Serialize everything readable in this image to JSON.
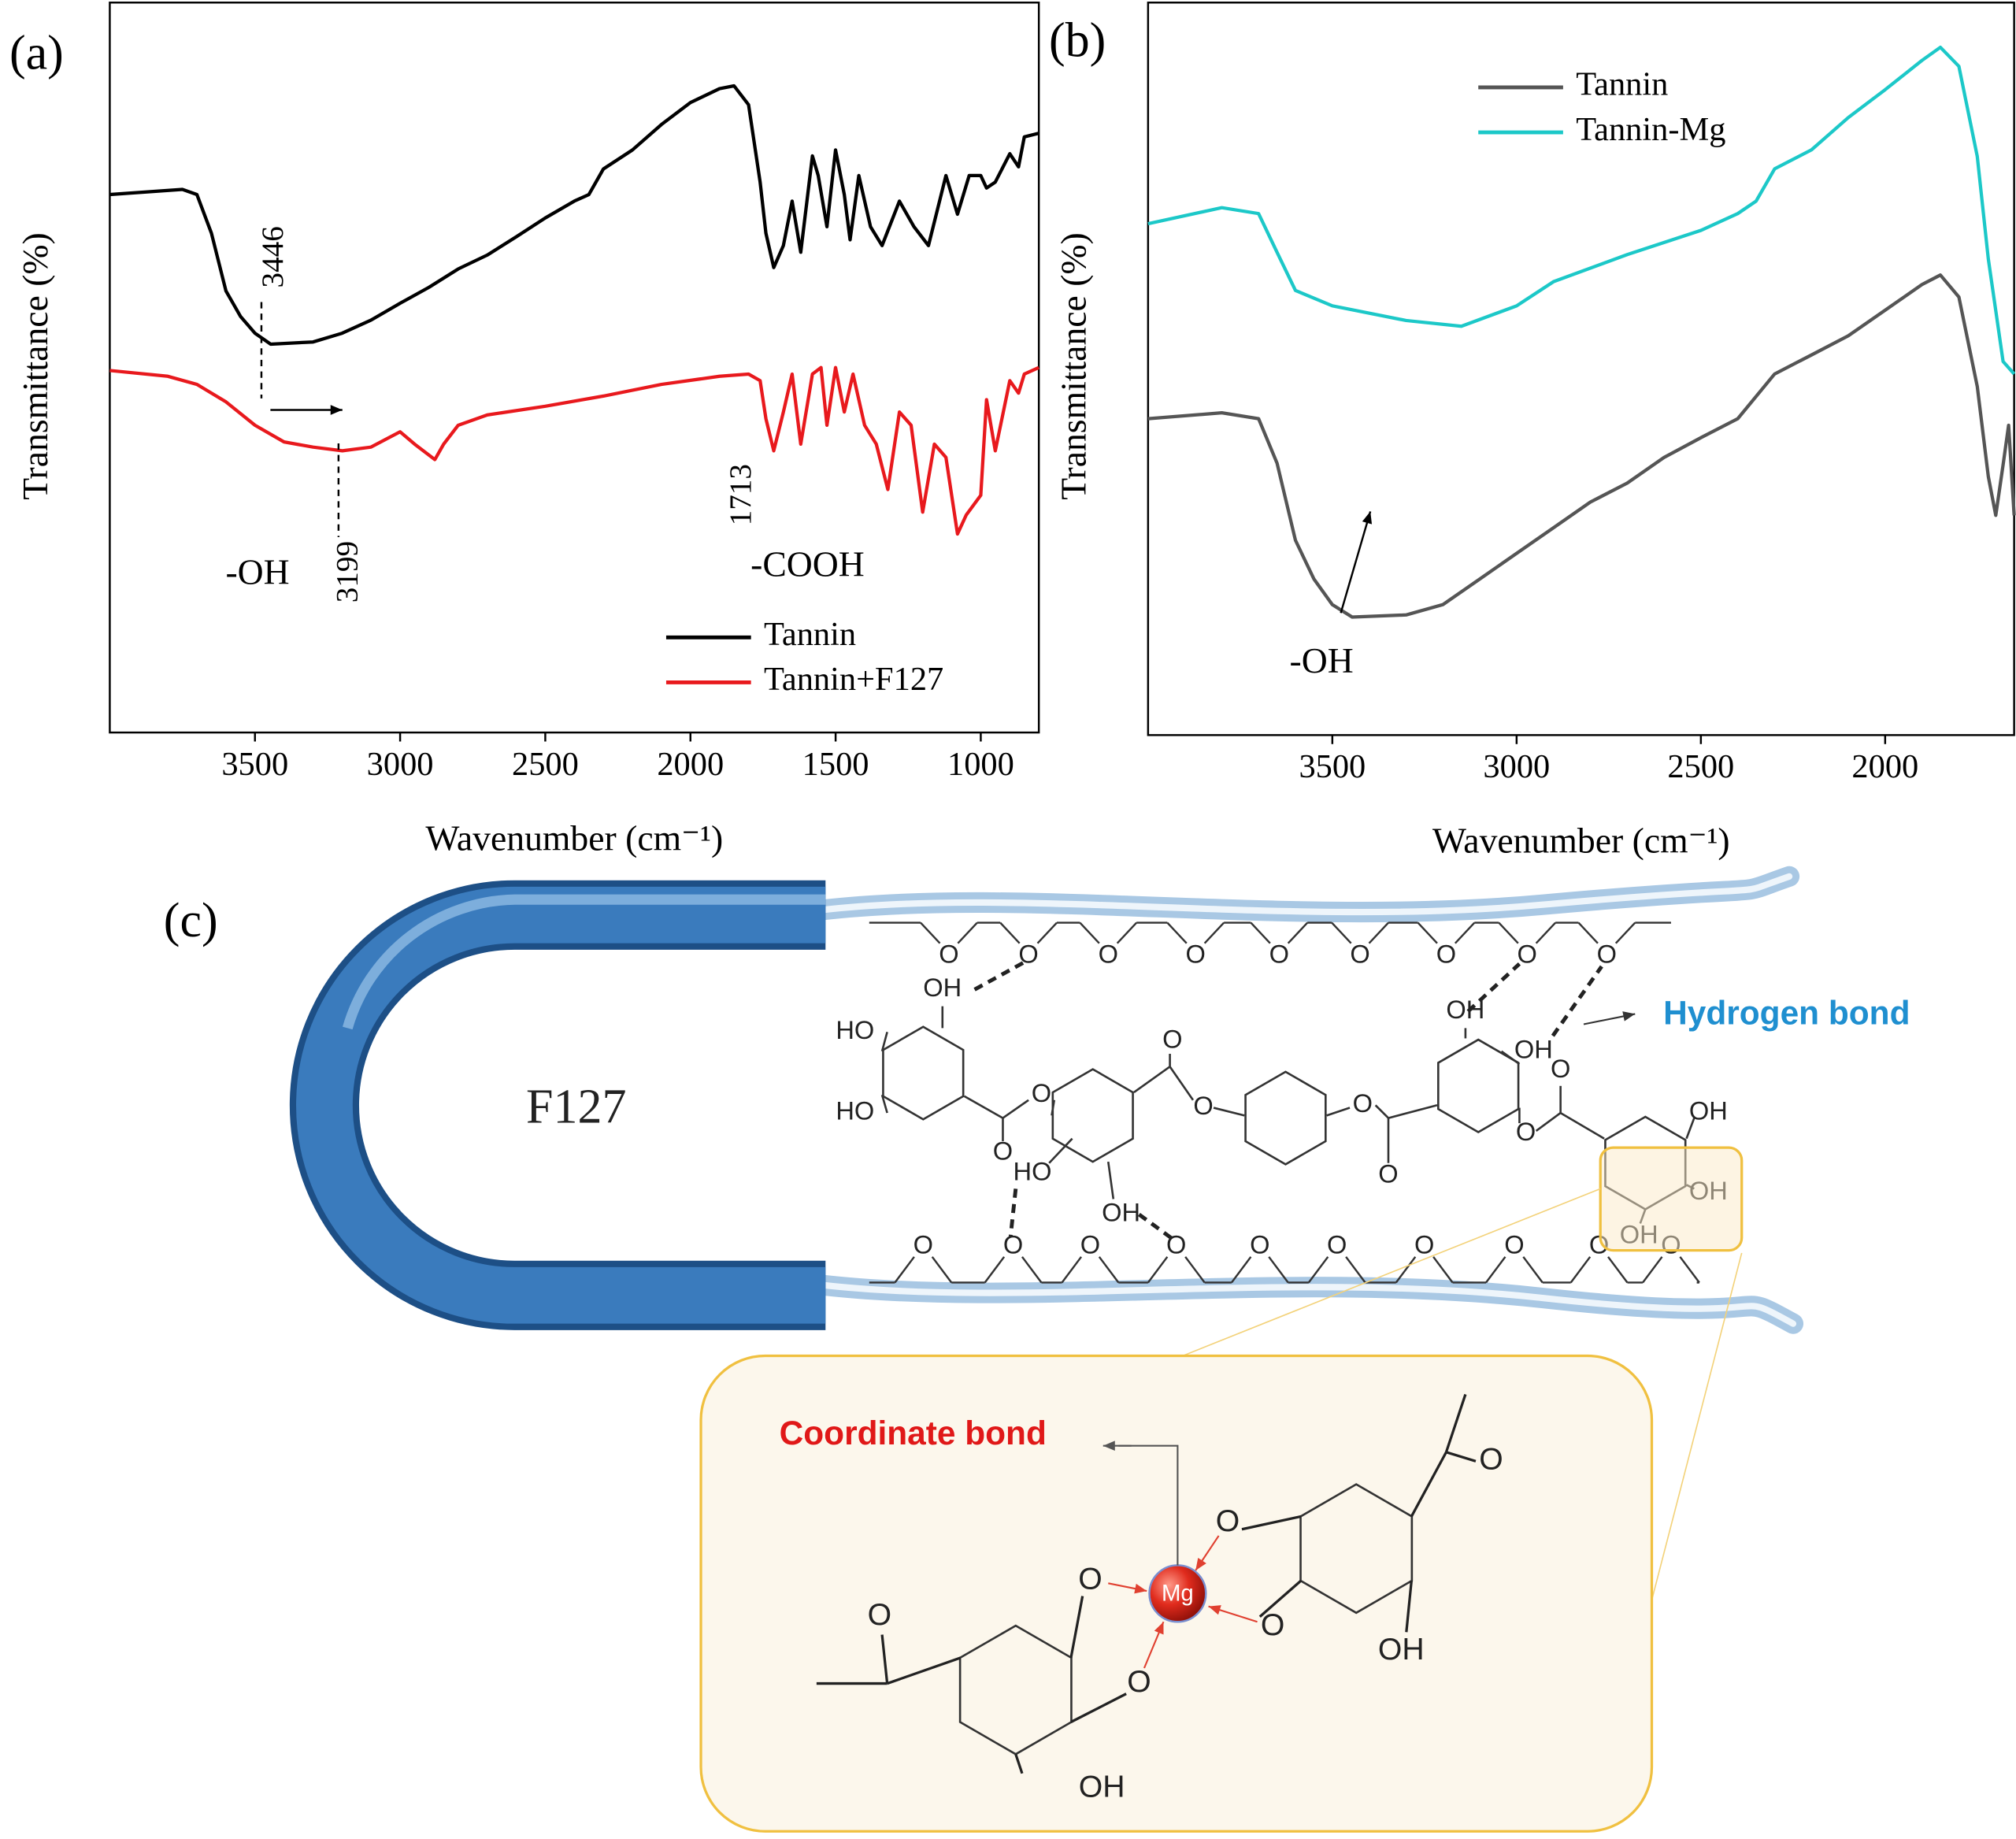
{
  "chart_data": [
    {
      "type": "line",
      "panel": "(a)",
      "x_label": "Wavenumber (cm⁻¹)",
      "y_label": "Transmittance (%)",
      "xlim": [
        4000,
        800
      ],
      "xticks": [
        3500,
        3000,
        2500,
        2000,
        1500,
        1000
      ],
      "ylim": [
        0,
        100
      ],
      "legend": "lower right",
      "series": [
        {
          "name": "Tannin",
          "color": "#000000",
          "x": [
            4000,
            3750,
            3700,
            3650,
            3600,
            3550,
            3500,
            3446,
            3300,
            3200,
            3100,
            3000,
            2900,
            2800,
            2700,
            2600,
            2500,
            2400,
            2350,
            2300,
            2200,
            2100,
            2000,
            1900,
            1850,
            1800,
            1760,
            1740,
            1713,
            1680,
            1650,
            1620,
            1580,
            1560,
            1530,
            1500,
            1470,
            1450,
            1420,
            1380,
            1340,
            1280,
            1230,
            1180,
            1120,
            1080,
            1040,
            1000,
            980,
            950,
            900,
            870,
            850,
            800
          ],
          "values": [
            73.7,
            74.4,
            73.7,
            68.4,
            60.5,
            57,
            54.7,
            53.2,
            53.5,
            54.7,
            56.5,
            58.8,
            61,
            63.5,
            65.4,
            67.9,
            70.5,
            72.8,
            73.7,
            77.2,
            79.8,
            83.3,
            86.3,
            88.2,
            88.6,
            86,
            75.4,
            68.4,
            63.7,
            66.7,
            72.8,
            65.8,
            79,
            76.3,
            69.3,
            79.8,
            73.7,
            67.5,
            76.3,
            69.3,
            66.7,
            72.8,
            69.3,
            66.7,
            76.3,
            71,
            76.3,
            76.3,
            74.6,
            75.4,
            79.3,
            77.5,
            81.6,
            82.1
          ]
        },
        {
          "name": "Tannin+F127",
          "color": "#e8191d",
          "x": [
            4000,
            3800,
            3700,
            3600,
            3500,
            3400,
            3300,
            3199,
            3100,
            3000,
            2950,
            2880,
            2850,
            2800,
            2700,
            2500,
            2300,
            2100,
            1900,
            1800,
            1760,
            1740,
            1713,
            1680,
            1650,
            1620,
            1580,
            1550,
            1530,
            1500,
            1470,
            1440,
            1400,
            1360,
            1320,
            1280,
            1240,
            1200,
            1160,
            1120,
            1080,
            1050,
            1000,
            980,
            950,
            900,
            870,
            850,
            800
          ],
          "values": [
            49.6,
            48.8,
            47.7,
            45.3,
            42.1,
            39.8,
            39.1,
            38.6,
            39.1,
            41.2,
            39.5,
            37.4,
            39.5,
            42.1,
            43.5,
            44.7,
            46.1,
            47.7,
            48.8,
            49.1,
            48.2,
            43,
            38.6,
            43.9,
            49.1,
            39.5,
            49.1,
            50,
            42.1,
            50,
            43.9,
            49.1,
            42.1,
            39.5,
            33.3,
            43.9,
            42.1,
            30.2,
            39.5,
            37.7,
            27.2,
            29.8,
            32.5,
            45.6,
            38.6,
            48.2,
            46.5,
            49.1,
            50
          ]
        }
      ],
      "annotations": [
        "3446",
        "3199",
        "1713",
        "-OH",
        "-COOH"
      ]
    },
    {
      "type": "line",
      "panel": "(b)",
      "x_label": "Wavenumber (cm⁻¹)",
      "y_label": "Transmittance (%)",
      "xlim": [
        4000,
        1650
      ],
      "xticks": [
        3500,
        3000,
        2500,
        2000
      ],
      "ylim": [
        0,
        100
      ],
      "legend": "upper center",
      "series": [
        {
          "name": "Tannin",
          "color": "#555555",
          "x": [
            4000,
            3800,
            3700,
            3650,
            3600,
            3550,
            3500,
            3446,
            3300,
            3200,
            3100,
            3000,
            2900,
            2800,
            2700,
            2600,
            2500,
            2400,
            2300,
            2200,
            2100,
            2000,
            1900,
            1850,
            1800,
            1750,
            1720,
            1700,
            1680,
            1665,
            1650
          ],
          "values": [
            43.2,
            44,
            43.2,
            37.1,
            26.6,
            21.3,
            17.8,
            16.1,
            16.4,
            17.8,
            21.3,
            24.8,
            28.3,
            31.8,
            34.4,
            37.9,
            40.6,
            43.2,
            49.3,
            51.9,
            54.5,
            58,
            61.5,
            62.8,
            59.8,
            47.6,
            35.3,
            30,
            36.9,
            42.3,
            30
          ]
        },
        {
          "name": "Tannin-Mg",
          "color": "#1cc8c8",
          "x": [
            4000,
            3800,
            3700,
            3650,
            3600,
            3500,
            3300,
            3150,
            3000,
            2900,
            2700,
            2500,
            2400,
            2350,
            2300,
            2200,
            2100,
            2000,
            1900,
            1850,
            1800,
            1750,
            1720,
            1680,
            1650
          ],
          "values": [
            69.8,
            72,
            71.2,
            65.9,
            60.7,
            58.6,
            56.6,
            55.8,
            58.6,
            61.9,
            65.6,
            68.9,
            71.2,
            72.9,
            77.3,
            79.9,
            84.3,
            88.1,
            92.1,
            93.9,
            91.3,
            79,
            65,
            51,
            49.3
          ]
        }
      ],
      "annotations": [
        "-OH"
      ]
    }
  ],
  "diagram": {
    "panel": "(c)",
    "polymer": "F127",
    "hydrogen_bond": "Hydrogen bond",
    "coordinate_bond": "Coordinate bond",
    "metal": "Mg",
    "backbone_top": [
      "O",
      "O",
      "O",
      "O",
      "O",
      "O",
      "O",
      "O",
      "O"
    ],
    "backbone_bottom": [
      "O",
      "O",
      "O",
      "O",
      "O",
      "O",
      "O",
      "O",
      "O",
      "O"
    ],
    "molecule_labels": [
      "OH",
      "HO",
      "HO",
      "O",
      "O",
      "O",
      "HO",
      "OH",
      "O",
      "O",
      "O",
      "OH",
      "OH",
      "O",
      "O",
      "OH",
      "OH",
      "OH"
    ],
    "complex_labels": [
      "O",
      "O",
      "O",
      "O",
      "OH",
      "OH",
      "O",
      "O"
    ]
  }
}
